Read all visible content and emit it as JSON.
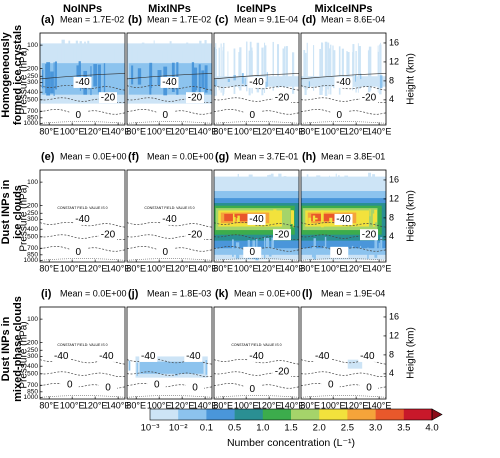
{
  "figure": {
    "columns": [
      "NoINPs",
      "MixINPs",
      "IceINPs",
      "MixIceINPs"
    ],
    "rows": [
      [
        "Homogeneously",
        "formed ice crystals"
      ],
      [
        "Dust INPs in",
        "ice clouds"
      ],
      [
        "Dust INPs in",
        "mixed-phase clouds"
      ]
    ],
    "y_label": "Pressure (hPa)",
    "y2_label": "Height (km)",
    "ylim": [
      70,
      1050
    ],
    "yticks": [
      100,
      200,
      250,
      300,
      400,
      500,
      700,
      850,
      1000
    ],
    "y2lim": [
      -1.3,
      18.1
    ],
    "y2ticks": [
      4,
      8,
      12,
      16
    ],
    "xlim": [
      72,
      146
    ],
    "xticks": [
      {
        "value": 80,
        "label": "80°E"
      },
      {
        "value": 100,
        "label": "100°E"
      },
      {
        "value": 120,
        "label": "120°E"
      },
      {
        "value": 140,
        "label": "140°E"
      }
    ],
    "panels": [
      {
        "label": "(a)",
        "mean": "Mean = 1.7E-02",
        "contours": [
          "-40",
          "-20",
          "0"
        ]
      },
      {
        "label": "(b)",
        "mean": "Mean = 1.7E-02",
        "contours": [
          "-40",
          "-20",
          "0"
        ]
      },
      {
        "label": "(c)",
        "mean": "Mean = 9.1E-04",
        "contours": [
          "-40",
          "-20",
          "0"
        ]
      },
      {
        "label": "(d)",
        "mean": "Mean = 8.6E-04",
        "contours": [
          "-40",
          "-20",
          "0"
        ]
      },
      {
        "label": "(e)",
        "mean": "Mean = 0.0E+00",
        "note": "CONSTANT FIELD: VALUE IS 0",
        "contours": [
          "-40",
          "-20",
          "0"
        ]
      },
      {
        "label": "(f)",
        "mean": "Mean = 0.0E+00",
        "note": "CONSTANT FIELD: VALUE IS 0",
        "contours": [
          "-40",
          "-20",
          "0"
        ]
      },
      {
        "label": "(g)",
        "mean": "Mean = 3.7E-01",
        "contours": [
          "-40",
          "-20",
          "0"
        ]
      },
      {
        "label": "(h)",
        "mean": "Mean = 3.8E-01",
        "contours": [
          "-40",
          "-20",
          "0"
        ]
      },
      {
        "label": "(i)",
        "mean": "Mean = 0.0E+00",
        "note": "CONSTANT FIELD: VALUE IS 0",
        "contours": [
          "-40",
          "-40",
          "0",
          "0"
        ]
      },
      {
        "label": "(j)",
        "mean": "Mean = 1.8E-03",
        "contours": [
          "-40",
          "-40",
          "0",
          "0"
        ]
      },
      {
        "label": "(k)",
        "mean": "Mean = 0.0E+00",
        "note": "CONSTANT FIELD: VALUE IS 0",
        "contours": [
          "-40",
          "-20",
          "0"
        ]
      },
      {
        "label": "(l)",
        "mean": "Mean = 1.9E-04",
        "contours": [
          "-40",
          "-40",
          "0",
          "0"
        ]
      }
    ],
    "colorbar": {
      "label": "Number concentration (L⁻¹)",
      "ticks": [
        "10⁻³",
        "10⁻²",
        "0.1",
        "0.5",
        "1.0",
        "1.5",
        "2.0",
        "2.5",
        "3.0",
        "3.5",
        "4.0"
      ],
      "colors": [
        "#cde4f6",
        "#8cc3ee",
        "#4a96da",
        "#2a8f93",
        "#3cac4c",
        "#a5d46a",
        "#f2e23c",
        "#f5a43a",
        "#e9582b",
        "#c8182a",
        "#8b0d1a"
      ]
    }
  }
}
